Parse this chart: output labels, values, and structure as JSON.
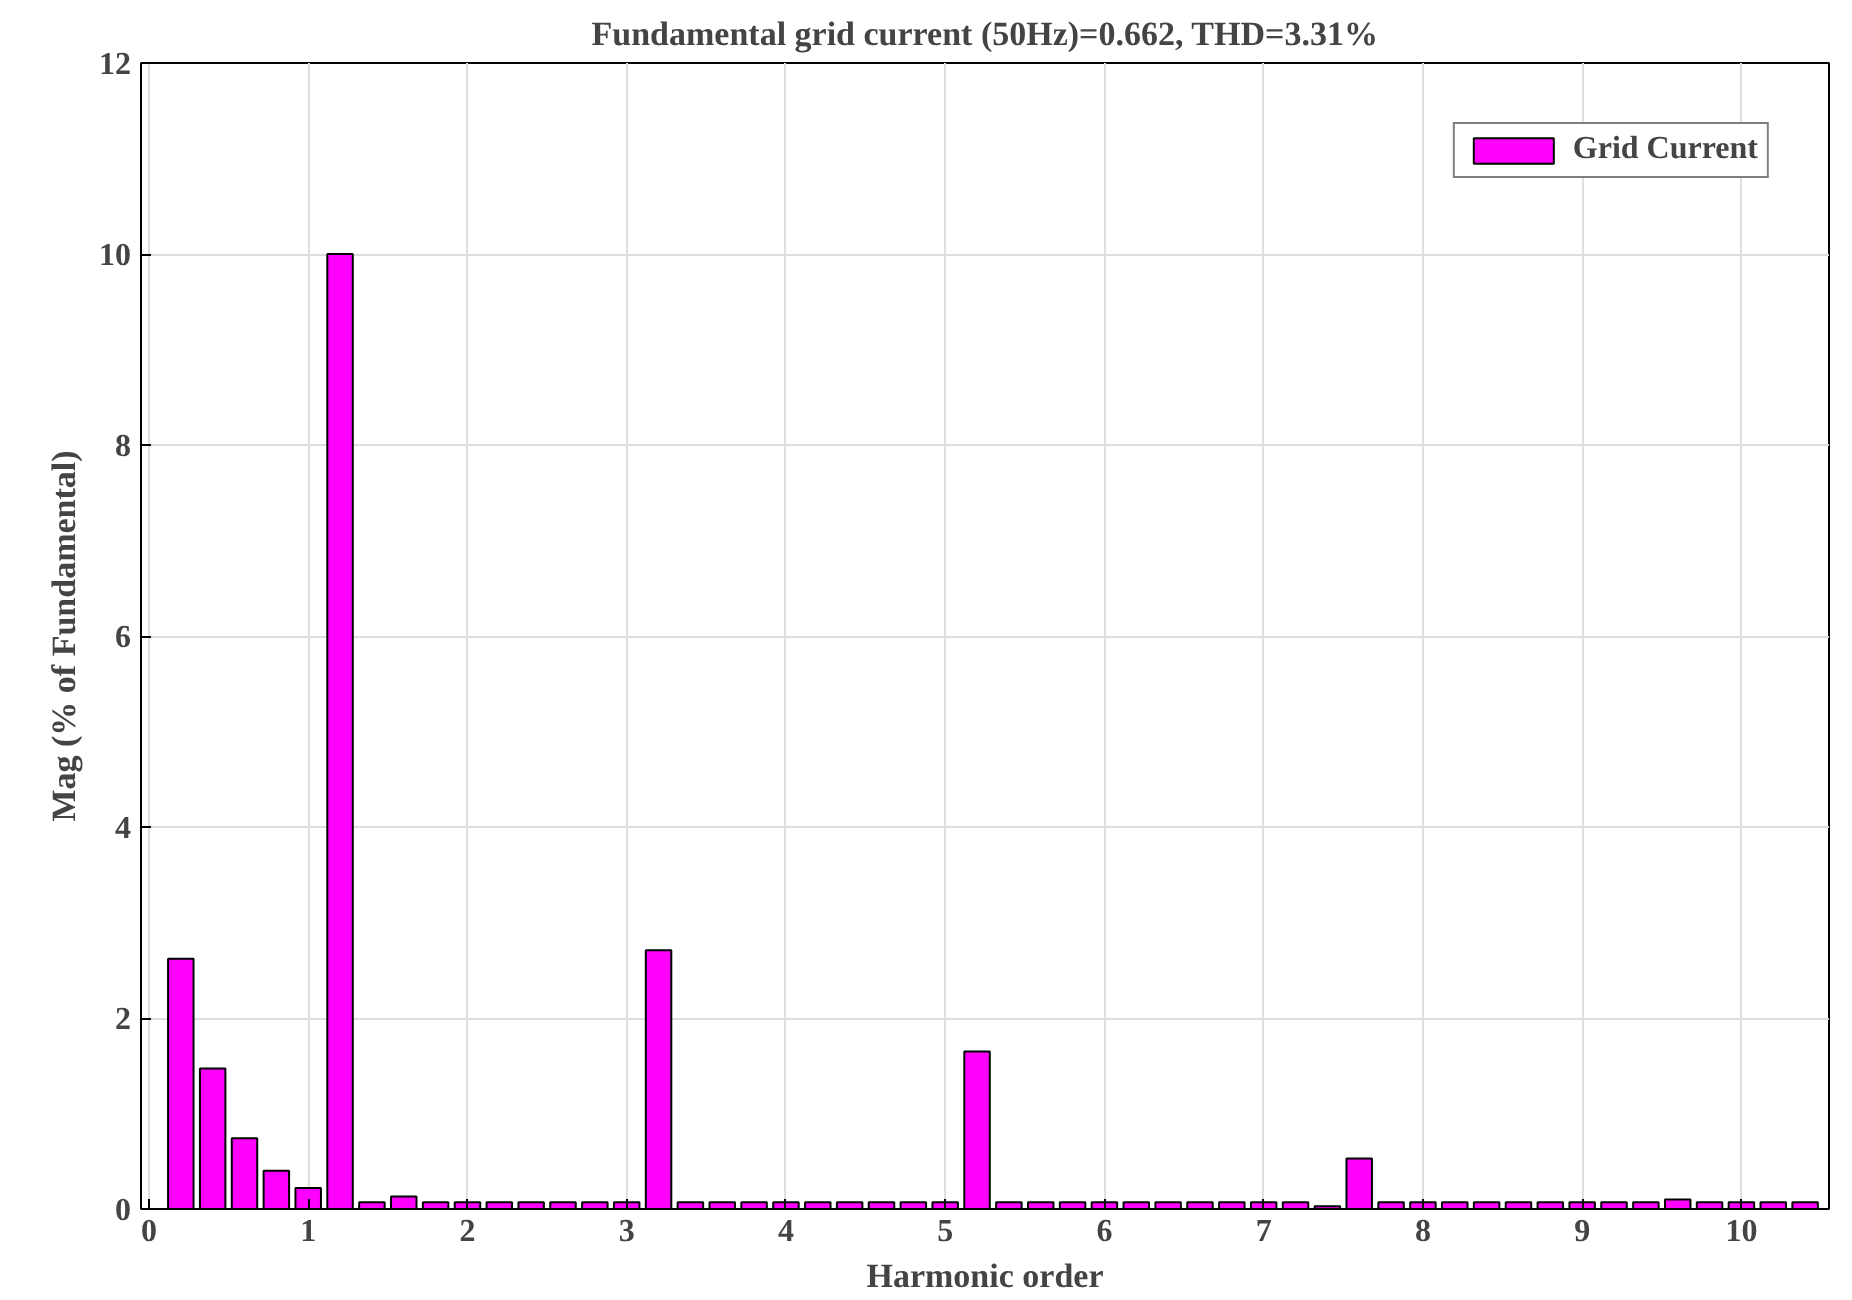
{
  "chart_data": {
    "type": "bar",
    "title": "Fundamental grid current (50Hz)=0.662, THD=3.31%",
    "xlabel": "Harmonic order",
    "ylabel": "Mag (% of Fundamental)",
    "x": [
      0.2,
      0.4,
      0.6,
      0.8,
      1.0,
      1.2,
      1.4,
      1.6,
      1.8,
      2.0,
      2.2,
      2.4,
      2.6,
      2.8,
      3.0,
      3.2,
      3.4,
      3.6,
      3.8,
      4.0,
      4.2,
      4.4,
      4.6,
      4.8,
      5.0,
      5.2,
      5.4,
      5.6,
      5.8,
      6.0,
      6.2,
      6.4,
      6.6,
      6.8,
      7.0,
      7.2,
      7.4,
      7.6,
      7.8,
      8.0,
      8.2,
      8.4,
      8.6,
      8.8,
      9.0,
      9.2,
      9.4,
      9.6,
      9.8,
      10.0,
      10.2,
      10.4
    ],
    "series": [
      {
        "name": "Grid Current",
        "color": "#ff00ff",
        "values": [
          2.62,
          1.47,
          0.74,
          0.4,
          0.22,
          10.0,
          0.07,
          0.13,
          0.07,
          0.07,
          0.07,
          0.07,
          0.07,
          0.07,
          0.07,
          2.71,
          0.07,
          0.07,
          0.07,
          0.07,
          0.07,
          0.07,
          0.07,
          0.07,
          0.07,
          1.65,
          0.07,
          0.07,
          0.07,
          0.07,
          0.07,
          0.07,
          0.07,
          0.07,
          0.07,
          0.07,
          0.03,
          0.53,
          0.07,
          0.07,
          0.07,
          0.07,
          0.07,
          0.07,
          0.07,
          0.07,
          0.07,
          0.1,
          0.07,
          0.07,
          0.07,
          0.07
        ]
      }
    ],
    "xlim": [
      -0.05,
      10.55
    ],
    "xticks": [
      0,
      1,
      2,
      3,
      4,
      5,
      6,
      7,
      8,
      9,
      10
    ],
    "ylim": [
      0,
      12
    ],
    "yticks": [
      0,
      2,
      4,
      6,
      8,
      10,
      12
    ],
    "grid": true,
    "legend": "top right"
  }
}
